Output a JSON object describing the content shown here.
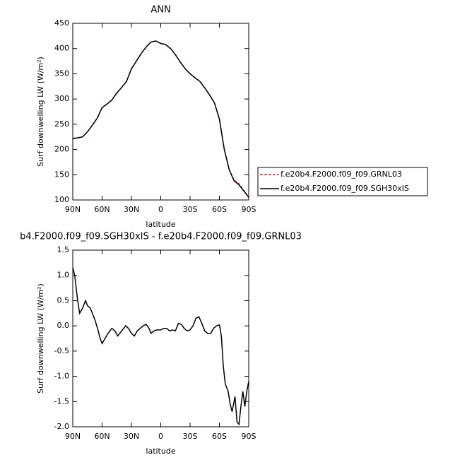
{
  "chart_data": [
    {
      "type": "line",
      "title": "ANN",
      "xlabel": "latitude",
      "ylabel": "Surf downwelling LW (W/m²)",
      "x": [
        90,
        85,
        80,
        75,
        70,
        65,
        60,
        55,
        50,
        45,
        40,
        35,
        30,
        25,
        20,
        15,
        10,
        5,
        0,
        -5,
        -10,
        -15,
        -20,
        -25,
        -30,
        -35,
        -40,
        -45,
        -50,
        -55,
        -60,
        -65,
        -70,
        -75,
        -80,
        -85,
        -90
      ],
      "series": [
        {
          "name": "f.e20b4.F2000.f09_f09.GRNL03",
          "color": "#e41a1c",
          "dash": true,
          "values": [
            221,
            223,
            225,
            235,
            248,
            262,
            283,
            290,
            298,
            312,
            323,
            335,
            360,
            375,
            390,
            403,
            413,
            415,
            410,
            408,
            400,
            388,
            373,
            360,
            350,
            342,
            335,
            322,
            308,
            292,
            260,
            201,
            161,
            139,
            132,
            119,
            106
          ]
        },
        {
          "name": "f.e20b4.F2000.f09_f09.SGH30xIS",
          "color": "#000000",
          "dash": false,
          "values": [
            222,
            223,
            225,
            235,
            248,
            262,
            283,
            290,
            298,
            312,
            323,
            335,
            360,
            375,
            390,
            403,
            413,
            415,
            410,
            408,
            400,
            388,
            373,
            360,
            350,
            342,
            335,
            322,
            308,
            292,
            260,
            200,
            160,
            138,
            130,
            118,
            105
          ]
        }
      ],
      "xlim": [
        90,
        -90
      ],
      "xticks": [
        {
          "value": 90,
          "label": "90N"
        },
        {
          "value": 60,
          "label": "60N"
        },
        {
          "value": 30,
          "label": "30N"
        },
        0,
        {
          "value": -30,
          "label": "30S"
        },
        {
          "value": -60,
          "label": "60S"
        },
        {
          "value": -90,
          "label": "90S"
        }
      ],
      "ylim": [
        100,
        450
      ],
      "yticks": [
        100,
        150,
        200,
        250,
        300,
        350,
        400,
        450
      ],
      "legend": "right"
    },
    {
      "type": "line",
      "title": "b4.F2000.f09_f09.SGH30xIS - f.e20b4.F2000.f09_f09.GRNL03",
      "xlabel": "latitude",
      "ylabel": "Surf downwelling LW (W/m²)",
      "x": [
        90,
        88,
        85,
        83,
        80,
        77,
        75,
        72,
        70,
        67,
        64,
        62,
        60,
        57,
        54,
        50,
        47,
        44,
        40,
        36,
        33,
        30,
        27,
        24,
        21,
        18,
        15,
        12,
        10,
        7,
        4,
        0,
        -3,
        -6,
        -9,
        -12,
        -15,
        -18,
        -21,
        -24,
        -27,
        -30,
        -33,
        -36,
        -39,
        -42,
        -45,
        -48,
        -51,
        -54,
        -57,
        -60,
        -62,
        -64,
        -66,
        -67,
        -69,
        -71,
        -73,
        -75,
        -76,
        -78,
        -80,
        -82,
        -84,
        -86,
        -88,
        -90
      ],
      "series": [
        {
          "color": "#000000",
          "dash": false,
          "values": [
            1.15,
            1.0,
            0.5,
            0.25,
            0.35,
            0.5,
            0.4,
            0.35,
            0.25,
            0.1,
            -0.1,
            -0.25,
            -0.35,
            -0.25,
            -0.15,
            -0.05,
            -0.1,
            -0.2,
            -0.1,
            0.0,
            -0.05,
            -0.15,
            -0.2,
            -0.1,
            -0.05,
            0.0,
            0.03,
            -0.05,
            -0.15,
            -0.1,
            -0.08,
            -0.08,
            -0.05,
            -0.05,
            -0.1,
            -0.08,
            -0.1,
            0.05,
            0.03,
            -0.05,
            -0.1,
            -0.08,
            0.0,
            0.15,
            0.18,
            0.05,
            -0.1,
            -0.15,
            -0.15,
            -0.05,
            0.0,
            0.02,
            -0.2,
            -0.8,
            -1.15,
            -1.2,
            -1.3,
            -1.55,
            -1.7,
            -1.5,
            -1.4,
            -1.9,
            -1.95,
            -1.6,
            -1.3,
            -1.6,
            -1.3,
            -1.1
          ]
        }
      ],
      "xlim": [
        90,
        -90
      ],
      "xticks": [
        {
          "value": 90,
          "label": "90N"
        },
        {
          "value": 60,
          "label": "60N"
        },
        {
          "value": 30,
          "label": "30N"
        },
        0,
        {
          "value": -30,
          "label": "30S"
        },
        {
          "value": -60,
          "label": "60S"
        },
        {
          "value": -90,
          "label": "90S"
        }
      ],
      "ylim": [
        -2,
        1.5
      ],
      "yticks": [
        {
          "value": -2,
          "label": "-2.0"
        },
        -1.5,
        {
          "value": -1,
          "label": "-1.0"
        },
        -0.5,
        {
          "value": 0,
          "label": "0.0"
        },
        0.5,
        {
          "value": 1,
          "label": "1.0"
        },
        1.5
      ]
    }
  ]
}
